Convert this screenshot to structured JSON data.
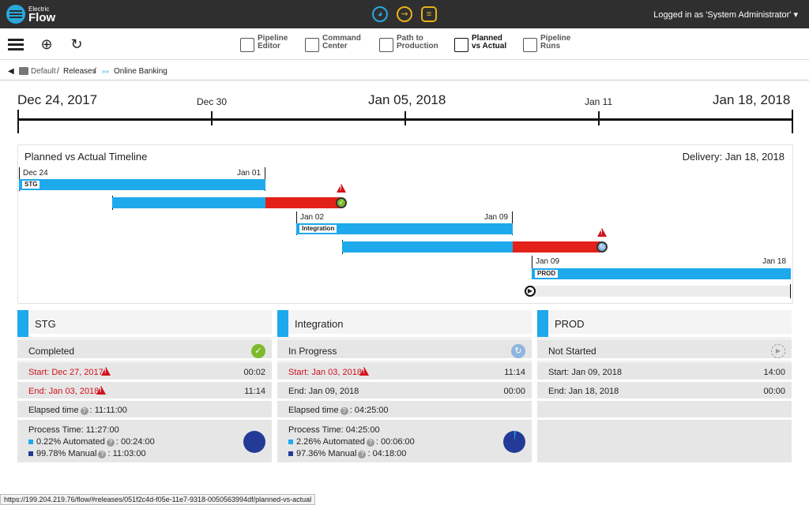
{
  "app": {
    "logo_small": "Electric",
    "logo_big": "Flow",
    "user": "Logged in as 'System Administrator' ▾"
  },
  "toolbar": {
    "nav": [
      {
        "line1": "Pipeline",
        "line2": "Editor"
      },
      {
        "line1": "Command",
        "line2": "Center"
      },
      {
        "line1": "Path to",
        "line2": "Production"
      },
      {
        "line1": "Planned",
        "line2": "vs Actual"
      },
      {
        "line1": "Pipeline",
        "line2": "Runs"
      }
    ]
  },
  "breadcrumb": {
    "back": "◀",
    "default": "Default",
    "sep1": " / ",
    "releases": "Releases",
    "sep2": " / ",
    "release_icon": "»»",
    "current": "Online Banking"
  },
  "axis": {
    "start": "Dec 24, 2017",
    "dec30": "Dec 30",
    "mid": "Jan 05, 2018",
    "jan11": "Jan 11",
    "end": "Jan 18, 2018"
  },
  "timeline": {
    "title": "Planned vs Actual Timeline",
    "delivery": "Delivery: Jan 18, 2018",
    "stg": {
      "start": "Dec 24",
      "end": "Jan 01",
      "tag": "STG"
    },
    "integration": {
      "start": "Jan 02",
      "end": "Jan 09",
      "tag": "Integration"
    },
    "prod": {
      "start": "Jan 09",
      "end": "Jan 18",
      "tag": "PROD"
    }
  },
  "cards": [
    {
      "name": "STG",
      "status": "Completed",
      "start": "Start: Dec 27, 2017",
      "start_time": "00:02",
      "end": "End: Jan 03, 2018",
      "end_time": "11:14",
      "elapsed_label": "Elapsed time",
      "elapsed": ": 11:11:00",
      "process_time": "Process Time: 11:27:00",
      "automated": "0.22% Automated",
      "automated_time": ": 00:24:00",
      "manual": "99.78% Manual",
      "manual_time": ": 11:03:00"
    },
    {
      "name": "Integration",
      "status": "In Progress",
      "start": "Start: Jan 03, 2018",
      "start_time": "11:14",
      "end": "End: Jan 09, 2018",
      "end_time": "00:00",
      "elapsed_label": "Elapsed time",
      "elapsed": ": 04:25:00",
      "process_time": "Process Time: 04:25:00",
      "automated": "2.26% Automated",
      "automated_time": ": 00:06:00",
      "manual": "97.36% Manual",
      "manual_time": ": 04:18:00"
    },
    {
      "name": "PROD",
      "status": "Not Started",
      "start": "Start: Jan 09, 2018",
      "start_time": "14:00",
      "end": "End: Jan 18, 2018",
      "end_time": "00:00"
    }
  ],
  "status_url": "https://199.204.219.76/flow/#releases/051f2c4d-f05e-11e7-9318-0050563994df/planned-vs-actual",
  "colors": {
    "planned": "#1da9ec",
    "overrun": "#e32119",
    "manual": "#233b96",
    "automated": "#1da9ec"
  }
}
